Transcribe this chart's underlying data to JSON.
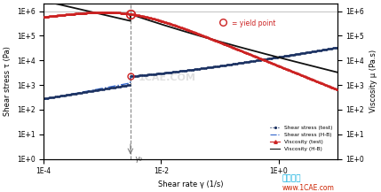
{
  "xlim": [
    0.0001,
    10.0
  ],
  "ylim_left": [
    1.0,
    2000000.0
  ],
  "ylim_right": [
    1.0,
    2000000.0
  ],
  "xlabel": "Shear rate γ (1/s)",
  "ylabel_left": "Shear stress τ (Pa)",
  "ylabel_right": "Viscosity μ (Pa.s)",
  "gamma0": 0.003,
  "bg_color": "#ffffff",
  "shear_stress_test_color": "#1a3060",
  "shear_stress_hb_color": "#3366cc",
  "viscosity_test_color": "#cc2222",
  "viscosity_hb_color": "#111111",
  "circle_color": "#cc2222",
  "legend_text": [
    "Shear stress (test)",
    "Shear stress (H-B)",
    "Viscosity (test)",
    "Viscosity (H-B)"
  ],
  "annotation_text": "= yield point",
  "gamma0_label": "γ₀",
  "xtick_labels": [
    "1E-4",
    "1E-2",
    "1E+0"
  ],
  "xtick_vals": [
    0.0001,
    0.01,
    1.0
  ],
  "ytick_labels_left": [
    "1E+0",
    "1E+1",
    "1E+2",
    "1E+3",
    "1E+4",
    "1E+5",
    "1E+6"
  ],
  "ytick_labels_right": [
    "1E+0",
    "1E+1",
    "1E+2",
    "1E+3",
    "1E+4",
    "1E+5",
    "1E+6"
  ],
  "ytick_vals": [
    1.0,
    10.0,
    100.0,
    1000.0,
    10000.0,
    100000.0,
    1000000.0
  ]
}
